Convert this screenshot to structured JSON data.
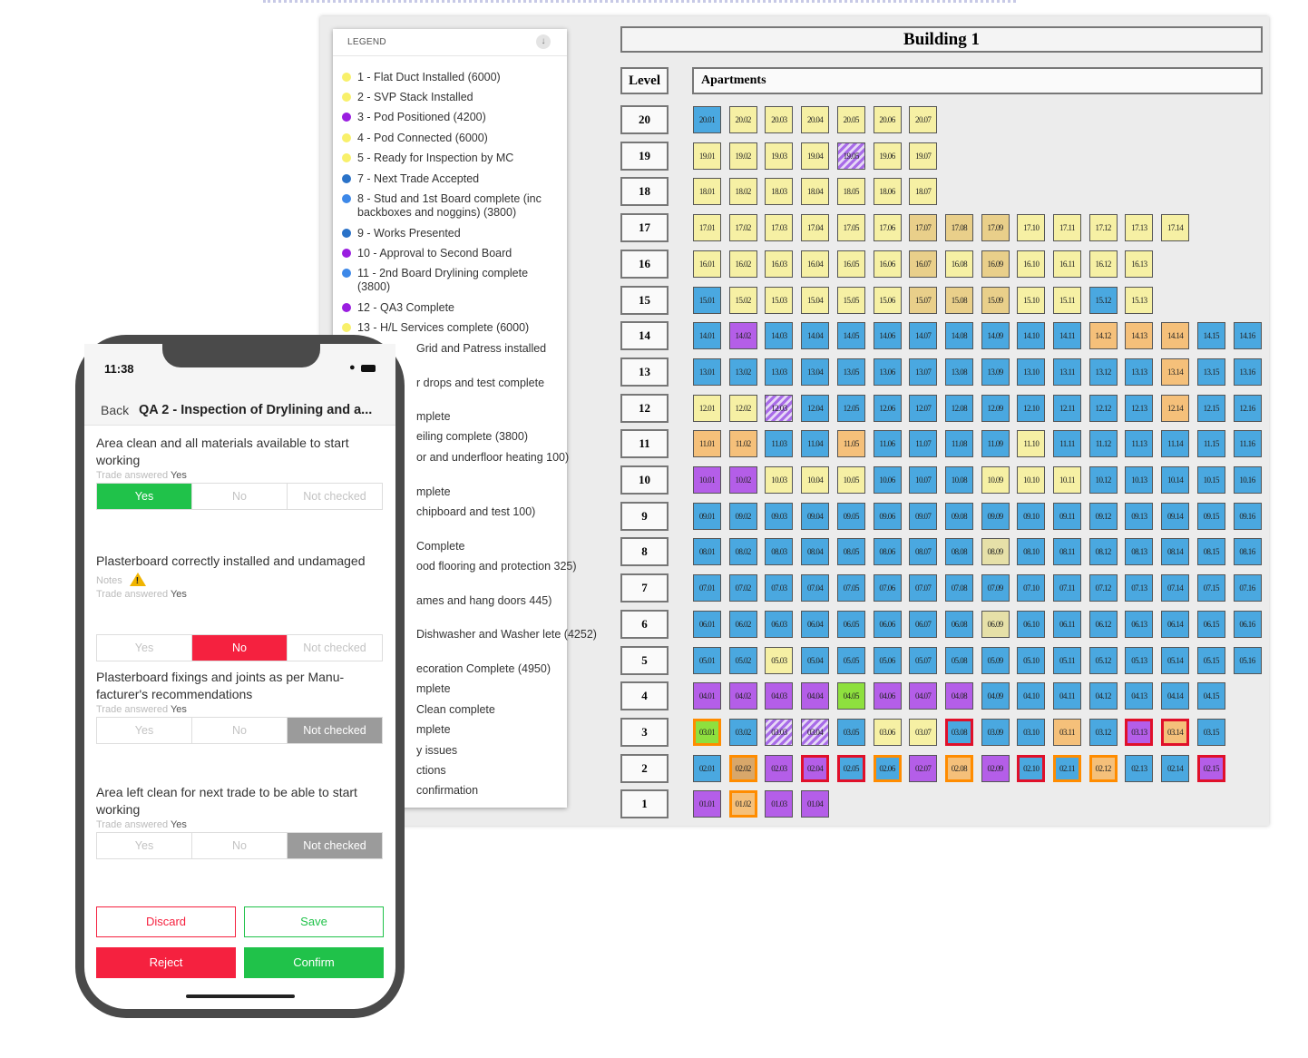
{
  "legend": {
    "title": "LEGEND",
    "toggle_icon": "chevron-down-icon",
    "items": [
      {
        "label": "1 - Flat Duct Installed (6000)",
        "color": "#f8f06a"
      },
      {
        "label": "2 - SVP Stack Installed",
        "color": "#f8f06a"
      },
      {
        "label": "3 - Pod Positioned (4200)",
        "color": "#9a1ee0"
      },
      {
        "label": "4 - Pod Connected (6000)",
        "color": "#f8f06a"
      },
      {
        "label": "5 - Ready for Inspection by MC",
        "color": "#f8f06a"
      },
      {
        "label": "7 - Next Trade Accepted",
        "color": "#2a72c8"
      },
      {
        "label": "8 - Stud and 1st Board complete (inc backboxes and noggins) (3800)",
        "color": "#3d88e8"
      },
      {
        "label": "9 - Works Presented",
        "color": "#2a72c8"
      },
      {
        "label": "10 - Approval to Second Board",
        "color": "#9a1ee0"
      },
      {
        "label": "11 - 2nd Board Drylining complete (3800)",
        "color": "#3d88e8"
      },
      {
        "label": "12 - QA3 Complete",
        "color": "#9a1ee0"
      },
      {
        "label": "13 - H/L Services complete (6000)",
        "color": "#f8f06a"
      },
      {
        "label": "Grid and Patress installed",
        "color": ""
      },
      {
        "label": "r drops and test complete",
        "color": ""
      },
      {
        "label": "mplete",
        "color": ""
      },
      {
        "label": "eiling complete (3800)",
        "color": ""
      },
      {
        "label": "or and underfloor heating 100)",
        "color": ""
      },
      {
        "label": "mplete",
        "color": ""
      },
      {
        "label": "chipboard and test 100)",
        "color": ""
      },
      {
        "label": "Complete",
        "color": ""
      },
      {
        "label": "ood flooring and protection 325)",
        "color": ""
      },
      {
        "label": "ames and hang doors 445)",
        "color": ""
      },
      {
        "label": "Dishwasher and Washer lete (4252)",
        "color": ""
      },
      {
        "label": "ecoration Complete (4950)",
        "color": ""
      },
      {
        "label": "mplete",
        "color": ""
      },
      {
        "label": "Clean complete",
        "color": ""
      },
      {
        "label": "mplete",
        "color": ""
      },
      {
        "label": "y issues",
        "color": ""
      },
      {
        "label": "ctions",
        "color": ""
      },
      {
        "label": "confirmation",
        "color": ""
      }
    ]
  },
  "building": {
    "title": "Building 1",
    "level_header": "Level",
    "apartments_header": "Apartments",
    "status_colors": {
      "Y": "#f6f0a4",
      "T": "#e9cf8a",
      "B": "#4aa8e0",
      "P": "#b45ee8",
      "O": "#f5c07a",
      "G": "#8ee03e",
      "K": "#d8a76a",
      "E": "#e6e0a8",
      "H": "striped-purple"
    },
    "highlight_colors": {
      "o": "#ff8c00",
      "r": "#e0102a"
    },
    "levels": [
      {
        "level": "20",
        "units": "B Y Y Y Y Y Y"
      },
      {
        "level": "19",
        "units": "Y Y Y Y H Y Y"
      },
      {
        "level": "18",
        "units": "Y Y Y Y Y Y Y"
      },
      {
        "level": "17",
        "units": "Y Y Y Y Y Y T T T Y Y Y Y Y"
      },
      {
        "level": "16",
        "units": "Y Y Y Y Y Y T Y T Y Y Y Y"
      },
      {
        "level": "15",
        "units": "B Y Y Y Y Y T T T Y Y B Y"
      },
      {
        "level": "14",
        "units": "B P B B B B B B B B B O O O B B"
      },
      {
        "level": "13",
        "units": "B B B B B B B B B B B B B O B B"
      },
      {
        "level": "12",
        "units": "Y Y H B B B B B B B B B B O B B"
      },
      {
        "level": "11",
        "units": "O O B B O B B B B Y B B B B B B"
      },
      {
        "level": "10",
        "units": "P P Y Y Y B B B Y Y Y B B B B B"
      },
      {
        "level": "9",
        "units": "B B B B B B B B B B B B B B B B"
      },
      {
        "level": "8",
        "units": "B B B B B B B B E B B B B B B B"
      },
      {
        "level": "7",
        "units": "B B B B B B B B B B B B B B B B"
      },
      {
        "level": "6",
        "units": "B B B B B B B B E B B B B B B B"
      },
      {
        "level": "5",
        "units": "B B Y B B B B B B B B B B B B B"
      },
      {
        "level": "4",
        "units": "P P P P G P P P B B B B B B B"
      },
      {
        "level": "3",
        "units": "G:o B H H B Y Y B:r B B O B P:r O:r B"
      },
      {
        "level": "2",
        "units": "B K:o P P:r B:r B:o P O:o P B:r B:o O:o B B P:r"
      },
      {
        "level": "1",
        "units": "P O:o P P"
      }
    ]
  },
  "phone": {
    "time": "11:38",
    "wifi_icon": "wifi-icon",
    "battery_icon": "battery-icon",
    "back_label": "Back",
    "title": "QA 2 - Inspection of Drylining and a...",
    "questions": [
      {
        "text": "Area clean and all materials available to start working",
        "notes": "",
        "trade_label": "Trade answered",
        "trade_answer": "Yes",
        "selected": "Yes"
      },
      {
        "text": "Plasterboard correctly installed and undamaged",
        "notes": "Notes",
        "trade_label": "Trade answered",
        "trade_answer": "Yes",
        "selected": "No"
      },
      {
        "text": "Plasterboard fixings and joints as per Manu-facturer's recommendations",
        "notes": "",
        "trade_label": "Trade answered",
        "trade_answer": "Yes",
        "selected": "Not checked"
      },
      {
        "text": "Area left clean for next trade to be able to start working",
        "notes": "",
        "trade_label": "Trade answered",
        "trade_answer": "Yes",
        "selected": "Not checked"
      }
    ],
    "options": {
      "yes": "Yes",
      "no": "No",
      "not_checked": "Not checked"
    },
    "buttons": {
      "discard": "Discard",
      "save": "Save",
      "reject": "Reject",
      "confirm": "Confirm"
    }
  }
}
